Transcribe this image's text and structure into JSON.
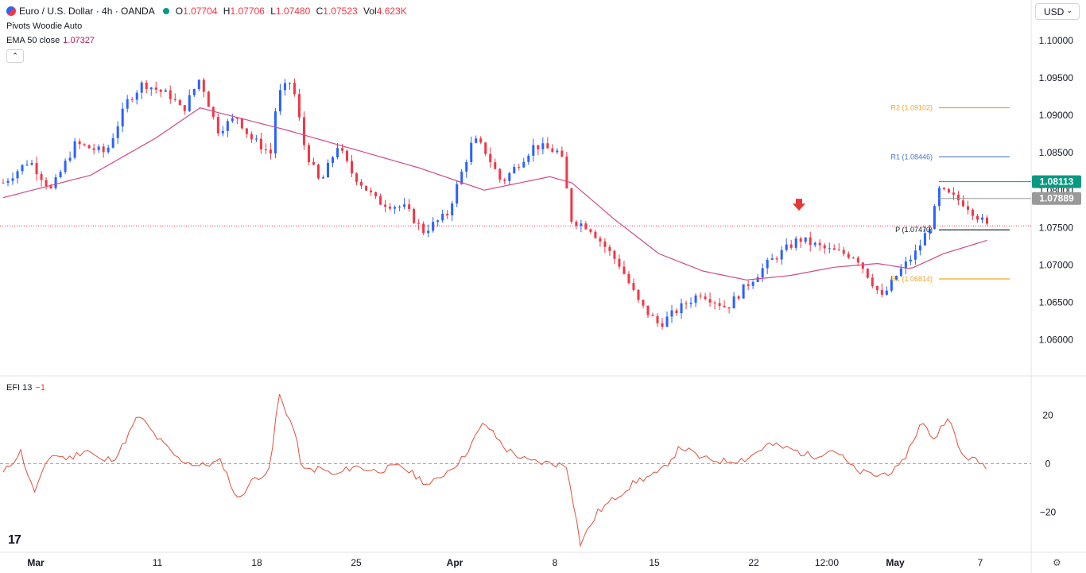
{
  "header": {
    "title": "Euro / U.S. Dollar · 4h · OANDA",
    "open_label": "O",
    "open": "1.07704",
    "high_label": "H",
    "high": "1.07706",
    "low_label": "L",
    "low": "1.07480",
    "close_label": "C",
    "close": "1.07523",
    "vol_label": "Vol",
    "vol": "4.623K",
    "pivots_label": "Pivots Woodie Auto",
    "ema_label": "EMA 50 close",
    "ema_value": "1.07327",
    "collapse": "⌃"
  },
  "currency_button": {
    "label": "USD",
    "caret": "⌄"
  },
  "efi_panel": {
    "label": "EFI 13",
    "value": "−1"
  },
  "logo": "17",
  "colors": {
    "up": "#2962ff",
    "down": "#f23645",
    "ema": "#d04a8a",
    "efi": "#e0503c",
    "r2": "#f5a623",
    "r1": "#4a79c9",
    "p": "#131722",
    "s1": "#f5a623",
    "high_badge": "#089981",
    "close_badge": "#999999"
  },
  "chart_data": {
    "type": "candlestick",
    "title": "Euro / U.S. Dollar · 4h · OANDA",
    "y_range": [
      1.0555,
      1.1035
    ],
    "y_ticks": [
      "1.10000",
      "1.09500",
      "1.09000",
      "1.08500",
      "1.08000",
      "1.07500",
      "1.07000",
      "1.06500",
      "1.06000"
    ],
    "x_ticks": [
      "Mar",
      "11",
      "18",
      "25",
      "Apr",
      "8",
      "15",
      "22",
      "12:00",
      "May",
      "7"
    ],
    "num_bars": 207,
    "close_path": [
      [
        0,
        1.081
      ],
      [
        12,
        1.084
      ],
      [
        22,
        1.08
      ],
      [
        33,
        1.0862
      ],
      [
        47,
        1.085
      ],
      [
        57,
        1.092
      ],
      [
        64,
        1.0943
      ],
      [
        77,
        1.0925
      ],
      [
        82,
        1.0905
      ],
      [
        90,
        1.095
      ],
      [
        98,
        1.088
      ],
      [
        107,
        1.0898
      ],
      [
        113,
        1.087
      ],
      [
        123,
        1.0848
      ],
      [
        125,
        1.0925
      ],
      [
        132,
        1.0947
      ],
      [
        138,
        1.0855
      ],
      [
        145,
        1.0808
      ],
      [
        153,
        1.086
      ],
      [
        159,
        1.0825
      ],
      [
        171,
        1.0785
      ],
      [
        184,
        1.0776
      ],
      [
        192,
        1.0745
      ],
      [
        203,
        1.0767
      ],
      [
        215,
        1.0868
      ],
      [
        220,
        1.0855
      ],
      [
        228,
        1.081
      ],
      [
        243,
        1.086
      ],
      [
        255,
        1.085
      ],
      [
        260,
        1.076
      ],
      [
        268,
        1.0751
      ],
      [
        282,
        1.07
      ],
      [
        291,
        1.0648
      ],
      [
        300,
        1.062
      ],
      [
        311,
        1.0646
      ],
      [
        319,
        1.0663
      ],
      [
        331,
        1.0643
      ],
      [
        340,
        1.0673
      ],
      [
        350,
        1.0703
      ],
      [
        364,
        1.0735
      ],
      [
        377,
        1.072
      ],
      [
        390,
        1.0712
      ],
      [
        402,
        1.0656
      ],
      [
        409,
        1.0688
      ],
      [
        418,
        1.0719
      ],
      [
        425,
        1.076
      ],
      [
        428,
        1.08
      ],
      [
        440,
        1.0782
      ],
      [
        450,
        1.0752
      ]
    ],
    "ema_50": [
      [
        0,
        1.079
      ],
      [
        40,
        1.082
      ],
      [
        70,
        1.087
      ],
      [
        90,
        1.091
      ],
      [
        110,
        1.0895
      ],
      [
        130,
        1.088
      ],
      [
        160,
        1.0855
      ],
      [
        190,
        1.083
      ],
      [
        220,
        1.08
      ],
      [
        250,
        1.0818
      ],
      [
        260,
        1.081
      ],
      [
        280,
        1.076
      ],
      [
        300,
        1.0715
      ],
      [
        320,
        1.0692
      ],
      [
        340,
        1.068
      ],
      [
        360,
        1.0686
      ],
      [
        380,
        1.0697
      ],
      [
        400,
        1.0702
      ],
      [
        415,
        1.0695
      ],
      [
        430,
        1.0715
      ],
      [
        450,
        1.0733
      ]
    ],
    "efi": [
      [
        0,
        -4
      ],
      [
        8,
        5
      ],
      [
        14,
        -12
      ],
      [
        22,
        4
      ],
      [
        30,
        2
      ],
      [
        38,
        6
      ],
      [
        45,
        1
      ],
      [
        52,
        3
      ],
      [
        62,
        20
      ],
      [
        70,
        11
      ],
      [
        80,
        2
      ],
      [
        90,
        -1
      ],
      [
        100,
        1
      ],
      [
        107,
        -15
      ],
      [
        115,
        -6
      ],
      [
        122,
        -3
      ],
      [
        126,
        29
      ],
      [
        133,
        14
      ],
      [
        137,
        -3
      ],
      [
        145,
        -2
      ],
      [
        152,
        -5
      ],
      [
        160,
        -1
      ],
      [
        170,
        -3
      ],
      [
        182,
        -1
      ],
      [
        195,
        -9
      ],
      [
        210,
        2
      ],
      [
        220,
        17
      ],
      [
        230,
        6
      ],
      [
        240,
        1
      ],
      [
        252,
        0
      ],
      [
        258,
        -1
      ],
      [
        264,
        -33
      ],
      [
        272,
        -20
      ],
      [
        280,
        -14
      ],
      [
        290,
        -7
      ],
      [
        300,
        -4
      ],
      [
        310,
        7
      ],
      [
        320,
        2
      ],
      [
        330,
        1
      ],
      [
        340,
        2
      ],
      [
        350,
        8
      ],
      [
        360,
        6
      ],
      [
        370,
        3
      ],
      [
        380,
        6
      ],
      [
        390,
        -3
      ],
      [
        400,
        -5
      ],
      [
        410,
        -2
      ],
      [
        420,
        17
      ],
      [
        426,
        10
      ],
      [
        432,
        20
      ],
      [
        438,
        4
      ],
      [
        450,
        -1
      ]
    ],
    "efi_range": [
      -35,
      30
    ],
    "efi_ticks": [
      "20",
      "0",
      "−20"
    ],
    "pivots": [
      {
        "label": "R2 (1.09102)",
        "value": 1.09102,
        "color": "#f5a623"
      },
      {
        "label": "R1 (1.08446)",
        "value": 1.08446,
        "color": "#4a79c9"
      },
      {
        "label": "P (1.07470)",
        "value": 1.0747,
        "color": "#131722"
      },
      {
        "label": "S1 (1.06814)",
        "value": 1.06814,
        "color": "#f5a623"
      }
    ],
    "badges": [
      {
        "label": "1.08113",
        "value": 1.08113,
        "color": "#089981"
      },
      {
        "label": "1.07889",
        "value": 1.07889,
        "color": "#999999"
      }
    ],
    "last_price_line": 1.07523,
    "annotation": "red down arrow above candle near 12:00"
  }
}
